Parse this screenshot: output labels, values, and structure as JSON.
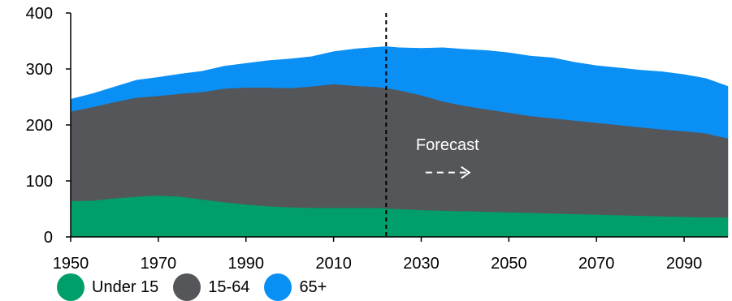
{
  "chart_data": {
    "type": "area",
    "stacked": true,
    "title": "",
    "xlabel": "",
    "ylabel": "",
    "xlim": [
      1950,
      2100
    ],
    "ylim": [
      0,
      400
    ],
    "x_ticks": [
      1950,
      1970,
      1990,
      2010,
      2030,
      2050,
      2070,
      2090
    ],
    "y_ticks": [
      0,
      100,
      200,
      300,
      400
    ],
    "grid": false,
    "legend_position": "bottom-left",
    "x": [
      1950,
      1955,
      1960,
      1965,
      1970,
      1975,
      1980,
      1985,
      1990,
      1995,
      2000,
      2005,
      2010,
      2015,
      2020,
      2022,
      2025,
      2030,
      2035,
      2040,
      2045,
      2050,
      2055,
      2060,
      2065,
      2070,
      2075,
      2080,
      2085,
      2090,
      2095,
      2100
    ],
    "series": [
      {
        "name": "Under 15",
        "color": "#009e6b",
        "values": [
          64,
          65,
          69,
          72,
          74,
          72,
          67,
          62,
          58,
          55,
          53,
          52,
          52,
          52,
          52,
          51,
          50,
          48,
          47,
          46,
          45,
          44,
          43,
          42,
          41,
          40,
          39,
          38,
          37,
          36,
          35,
          35
        ]
      },
      {
        "name": "15-64",
        "color": "#55565a",
        "values": [
          160,
          167,
          172,
          177,
          178,
          184,
          192,
          203,
          209,
          212,
          213,
          217,
          221,
          218,
          216,
          215,
          212,
          205,
          195,
          188,
          183,
          178,
          173,
          170,
          167,
          164,
          161,
          158,
          155,
          153,
          150,
          141
        ]
      },
      {
        "name": "65+",
        "color": "#0a8ff5",
        "values": [
          22,
          24,
          27,
          31,
          33,
          35,
          37,
          40,
          43,
          48,
          52,
          53,
          58,
          66,
          71,
          74,
          76,
          84,
          96,
          101,
          105,
          107,
          107,
          108,
          104,
          102,
          102,
          102,
          103,
          101,
          98,
          93
        ]
      }
    ],
    "annotations": [
      {
        "type": "vline",
        "x": 2022,
        "style": "dashed",
        "color": "#000000"
      },
      {
        "type": "text",
        "text": "Forecast",
        "x": 2036,
        "y": 155,
        "color": "#ffffff"
      },
      {
        "type": "arrow",
        "x1": 2031,
        "x2": 2041,
        "y": 115,
        "style": "dashed",
        "color": "#ffffff"
      }
    ]
  }
}
